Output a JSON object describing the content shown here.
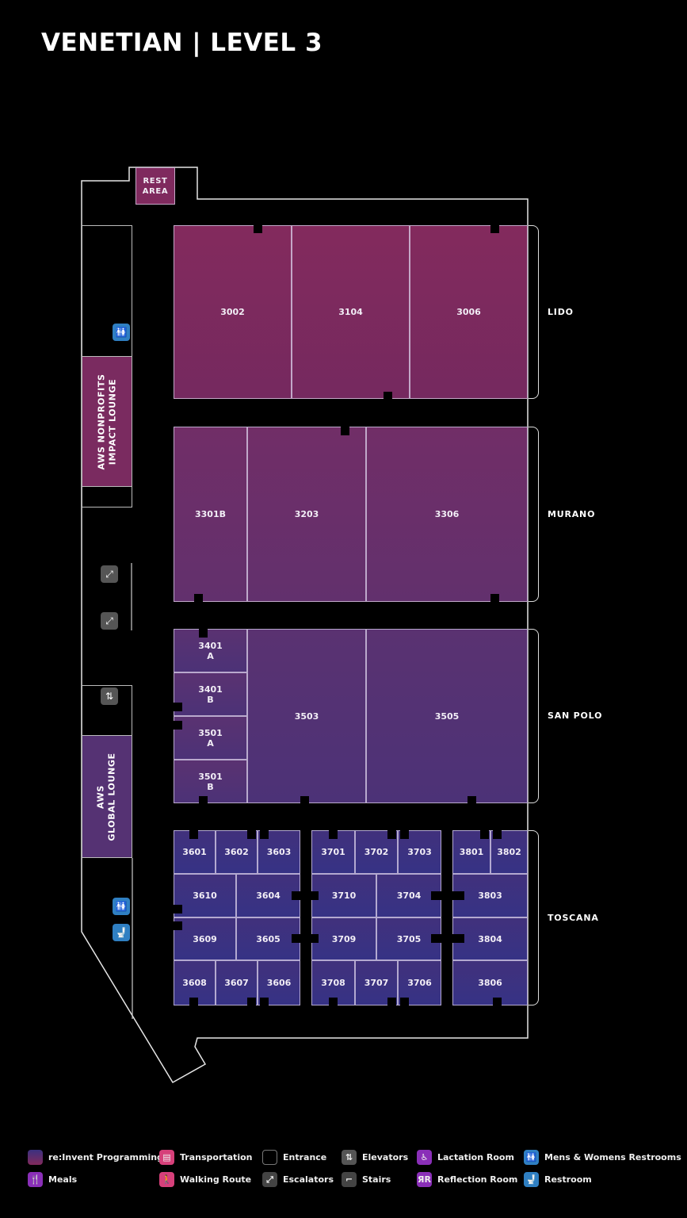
{
  "title": "VENETIAN | LEVEL 3",
  "colors": {
    "lido": "#7f2a5e",
    "murano": "#6c2f69",
    "san_polo": "#573271",
    "toscana": "#3b3180",
    "restroom_blue": "#2f7fc2",
    "gray_icon": "#555555",
    "lactation_purple": "#8a2fb8",
    "transport_pink": "#d6407a"
  },
  "rest_area": "REST\nAREA",
  "lounges": {
    "nonprofits": "AWS NONPROFITS\nIMPACT LOUNGE",
    "global": "AWS\nGLOBAL LOUNGE"
  },
  "halls": [
    {
      "name": "LIDO",
      "rooms": [
        "3002",
        "3104",
        "3006"
      ]
    },
    {
      "name": "MURANO",
      "rooms": [
        "3301B",
        "3203",
        "3306"
      ]
    },
    {
      "name": "SAN POLO",
      "rooms": [
        "3401\nA",
        "3401\nB",
        "3501\nA",
        "3501\nB",
        "3503",
        "3505"
      ]
    },
    {
      "name": "TOSCANA",
      "rooms": [
        "3601",
        "3602",
        "3603",
        "3610",
        "3604",
        "3609",
        "3605",
        "3608",
        "3607",
        "3606",
        "3701",
        "3702",
        "3703",
        "3710",
        "3704",
        "3709",
        "3705",
        "3708",
        "3707",
        "3706",
        "3801",
        "3802",
        "3803",
        "3804",
        "3806"
      ]
    }
  ],
  "map_icons": [
    "mens-womens-restroom",
    "escalator",
    "escalator",
    "elevator",
    "mens-womens-restroom",
    "restroom"
  ],
  "legend": [
    {
      "label": "re:Invent Programming",
      "icon": "programming-swatch"
    },
    {
      "label": "Transportation",
      "icon": "bus"
    },
    {
      "label": "Entrance",
      "icon": "entrance"
    },
    {
      "label": "Elevators",
      "icon": "elevator"
    },
    {
      "label": "Lactation Room",
      "icon": "lactation"
    },
    {
      "label": "Mens & Womens Restrooms",
      "icon": "mens-womens-restroom"
    },
    {
      "label": "Meals",
      "icon": "utensils"
    },
    {
      "label": "Walking Route",
      "icon": "walking"
    },
    {
      "label": "Escalators",
      "icon": "escalator"
    },
    {
      "label": "Stairs",
      "icon": "stairs"
    },
    {
      "label": "Reflection Room",
      "icon": "reflection"
    },
    {
      "label": "Restroom",
      "icon": "restroom"
    }
  ]
}
